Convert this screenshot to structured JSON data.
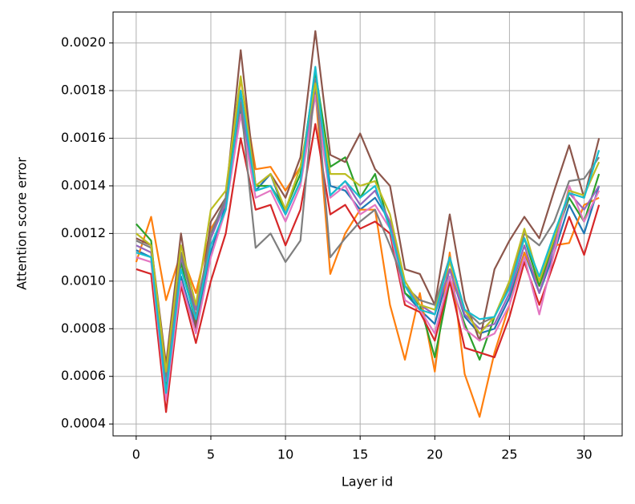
{
  "chart_data": {
    "type": "line",
    "x_label": "Layer id",
    "y_label": "Attention score error",
    "x": [
      0,
      1,
      2,
      3,
      4,
      5,
      6,
      7,
      8,
      9,
      10,
      11,
      12,
      13,
      14,
      15,
      16,
      17,
      18,
      19,
      20,
      21,
      22,
      23,
      24,
      25,
      26,
      27,
      28,
      29,
      30,
      31
    ],
    "xlim": [
      -1.55,
      32.55
    ],
    "xticks": [
      0,
      5,
      10,
      15,
      20,
      25,
      30
    ],
    "ylim": [
      0.00035,
      0.00213
    ],
    "yticks": [
      0.0004,
      0.0006,
      0.0008,
      {
        "value": 0.001,
        "label": "0.0010"
      },
      0.0012,
      0.0014,
      0.0016,
      0.0018,
      {
        "value": 0.002,
        "label": "0.0020"
      }
    ],
    "grid": true,
    "series": [
      {
        "color": "#1f77b4",
        "values": [
          0.00113,
          0.0011,
          0.00052,
          0.00102,
          0.0008,
          0.00112,
          0.00132,
          0.00172,
          0.00138,
          0.00145,
          0.00128,
          0.00142,
          0.00182,
          0.0014,
          0.00138,
          0.0013,
          0.00135,
          0.00125,
          0.00095,
          0.00088,
          0.00082,
          0.00105,
          0.00085,
          0.00078,
          0.0008,
          0.00093,
          0.00112,
          0.00095,
          0.00112,
          0.00132,
          0.0012,
          0.0014
        ]
      },
      {
        "color": "#ff7f0e",
        "values": [
          0.00108,
          0.00127,
          0.00092,
          0.00112,
          0.00095,
          0.00122,
          0.00132,
          0.00185,
          0.00147,
          0.00148,
          0.00138,
          0.00148,
          0.0018,
          0.00103,
          0.0012,
          0.0013,
          0.0013,
          0.0009,
          0.00067,
          0.00095,
          0.00062,
          0.00112,
          0.00061,
          0.00043,
          0.0007,
          0.0009,
          0.00112,
          0.00098,
          0.00115,
          0.00116,
          0.00132,
          0.00135
        ]
      },
      {
        "color": "#2ca02c",
        "values": [
          0.00124,
          0.00117,
          0.00055,
          0.00108,
          0.00082,
          0.00118,
          0.00135,
          0.00178,
          0.0014,
          0.0014,
          0.0013,
          0.00145,
          0.00188,
          0.00148,
          0.00152,
          0.00135,
          0.00145,
          0.00122,
          0.00095,
          0.0009,
          0.00068,
          0.001,
          0.00082,
          0.00067,
          0.00085,
          0.001,
          0.00118,
          0.00098,
          0.00117,
          0.00135,
          0.00125,
          0.00145
        ]
      },
      {
        "color": "#d62728",
        "values": [
          0.00105,
          0.00103,
          0.00045,
          0.00098,
          0.00074,
          0.001,
          0.0012,
          0.0016,
          0.0013,
          0.00132,
          0.00115,
          0.0013,
          0.00166,
          0.00128,
          0.00132,
          0.00122,
          0.00125,
          0.0012,
          0.0009,
          0.00087,
          0.00075,
          0.001,
          0.00072,
          0.0007,
          0.00068,
          0.00085,
          0.00108,
          0.0009,
          0.00108,
          0.00127,
          0.00111,
          0.00132
        ]
      },
      {
        "color": "#9467bd",
        "values": [
          0.00115,
          0.00112,
          0.00058,
          0.0011,
          0.00088,
          0.00118,
          0.00133,
          0.00176,
          0.00138,
          0.0014,
          0.00128,
          0.00142,
          0.0018,
          0.00136,
          0.00142,
          0.00132,
          0.00138,
          0.00125,
          0.00098,
          0.0009,
          0.00086,
          0.00105,
          0.00086,
          0.0008,
          0.00082,
          0.00095,
          0.00115,
          0.00095,
          0.00115,
          0.00137,
          0.0013,
          0.0014
        ]
      },
      {
        "color": "#8c564b",
        "values": [
          0.00118,
          0.00115,
          0.00065,
          0.0012,
          0.0008,
          0.00125,
          0.00135,
          0.00197,
          0.0014,
          0.00145,
          0.00135,
          0.00152,
          0.00205,
          0.00153,
          0.0015,
          0.00162,
          0.00147,
          0.0014,
          0.00105,
          0.00103,
          0.0009,
          0.00128,
          0.00092,
          0.00075,
          0.00105,
          0.00117,
          0.00127,
          0.00118,
          0.00138,
          0.00157,
          0.00135,
          0.0016
        ]
      },
      {
        "color": "#e377c2",
        "values": [
          0.0011,
          0.00108,
          0.0005,
          0.001,
          0.00078,
          0.0011,
          0.0013,
          0.0017,
          0.00135,
          0.00138,
          0.00125,
          0.0014,
          0.00178,
          0.00135,
          0.0014,
          0.00128,
          0.00132,
          0.00122,
          0.00092,
          0.00088,
          0.00078,
          0.00102,
          0.0008,
          0.00075,
          0.00078,
          0.0009,
          0.0011,
          0.00086,
          0.00112,
          0.0014,
          0.00125,
          0.00138
        ]
      },
      {
        "color": "#7f7f7f",
        "values": [
          0.00117,
          0.00114,
          0.0006,
          0.00112,
          0.00085,
          0.0012,
          0.00135,
          0.00175,
          0.00114,
          0.0012,
          0.00108,
          0.00117,
          0.00185,
          0.0011,
          0.00118,
          0.00125,
          0.0013,
          0.00115,
          0.00098,
          0.00092,
          0.0009,
          0.0011,
          0.00088,
          0.00082,
          0.00085,
          0.00098,
          0.0012,
          0.00115,
          0.00125,
          0.00142,
          0.00143,
          0.00152
        ]
      },
      {
        "color": "#bcbd22",
        "values": [
          0.0012,
          0.00115,
          0.00062,
          0.00115,
          0.0009,
          0.0013,
          0.00138,
          0.00186,
          0.0014,
          0.00145,
          0.0013,
          0.00148,
          0.00183,
          0.00145,
          0.00145,
          0.0014,
          0.00142,
          0.00128,
          0.001,
          0.0009,
          0.00088,
          0.00108,
          0.00088,
          0.00078,
          0.00085,
          0.001,
          0.00122,
          0.001,
          0.00118,
          0.00138,
          0.00136,
          0.0015
        ]
      },
      {
        "color": "#17becf",
        "values": [
          0.00112,
          0.0011,
          0.00053,
          0.00105,
          0.00084,
          0.00115,
          0.0013,
          0.0018,
          0.00138,
          0.0014,
          0.00128,
          0.00142,
          0.0019,
          0.00136,
          0.00142,
          0.00135,
          0.0014,
          0.00122,
          0.00098,
          0.00088,
          0.00086,
          0.0011,
          0.00088,
          0.00084,
          0.00085,
          0.00097,
          0.00118,
          0.00102,
          0.0012,
          0.00137,
          0.00135,
          0.00155
        ]
      }
    ]
  }
}
